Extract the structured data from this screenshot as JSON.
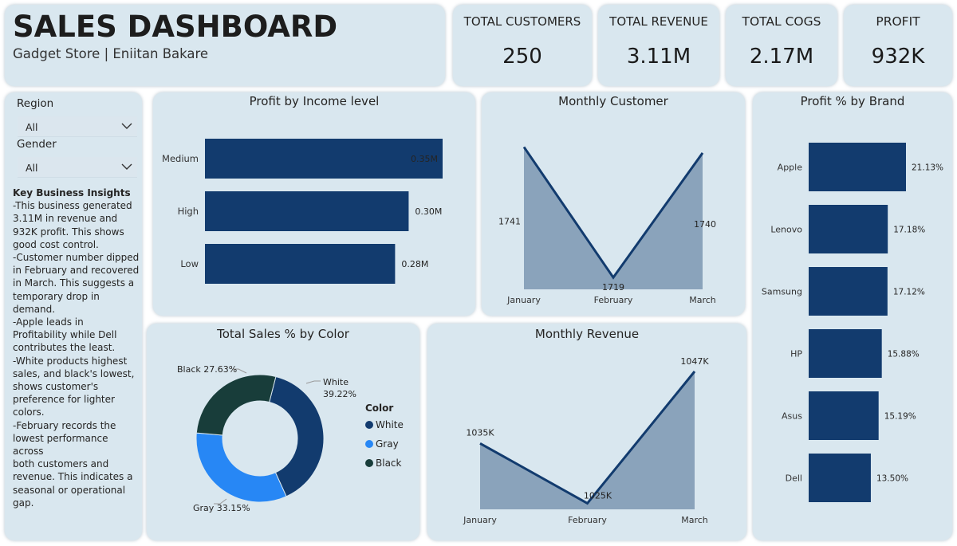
{
  "header": {
    "title": "SALES DASHBOARD",
    "subtitle": "Gadget Store | Eniitan Bakare"
  },
  "kpis": [
    {
      "label": "TOTAL CUSTOMERS",
      "value": "250"
    },
    {
      "label": "TOTAL REVENUE",
      "value": "3.11M"
    },
    {
      "label": "TOTAL COGS",
      "value": "2.17M"
    },
    {
      "label": "PROFIT",
      "value": "932K"
    }
  ],
  "filters": {
    "region_label": "Region",
    "region_value": "All",
    "gender_label": "Gender",
    "gender_value": "All"
  },
  "insights": {
    "title": "Key Business Insights",
    "lines": [
      "-This business generated",
      "3.11M in revenue and",
      "932K profit. This shows",
      "good cost control.",
      "-Customer number dipped",
      "in February and recovered",
      "in March. This suggests a",
      "temporary drop in",
      "demand.",
      "-Apple leads in",
      "Profitability while Dell",
      "contributes the least.",
      "-White products highest",
      "sales, and black's lowest,",
      "shows customer's",
      "preference for lighter",
      "colors.",
      "-February records the",
      "lowest performance across",
      "both customers and",
      "revenue. This indicates a",
      "seasonal or operational",
      "gap."
    ]
  },
  "colors": {
    "bar": "#123b6e",
    "area_fill": "#8aa3bb",
    "line": "#123b6e",
    "card_bg": "#d9e7ef",
    "white_slice": "#123b6e",
    "gray_slice": "#2787f5",
    "black_slice": "#183d3a"
  },
  "chart_data": [
    {
      "id": "profit-by-income",
      "type": "bar",
      "orientation": "horizontal",
      "title": "Profit by Income level",
      "categories": [
        "Medium",
        "High",
        "Low"
      ],
      "values": [
        0.35,
        0.3,
        0.28
      ],
      "data_labels": [
        "0.35M",
        "0.30M",
        "0.28M"
      ],
      "xlim": [
        0,
        0.35
      ]
    },
    {
      "id": "monthly-customer",
      "type": "area",
      "title": "Monthly Customer",
      "categories": [
        "January",
        "February",
        "March"
      ],
      "values": [
        1741,
        1719,
        1740
      ],
      "data_labels": [
        "1741",
        "1719",
        "1740"
      ],
      "ylim": [
        1717,
        1742
      ]
    },
    {
      "id": "profit-pct-by-brand",
      "type": "bar",
      "orientation": "horizontal",
      "title": "Profit % by Brand",
      "categories": [
        "Apple",
        "Lenovo",
        "Samsung",
        "HP",
        "Asus",
        "Dell"
      ],
      "values": [
        21.13,
        17.18,
        17.12,
        15.88,
        15.19,
        13.5
      ],
      "data_labels": [
        "21.13%",
        "17.18%",
        "17.12%",
        "15.88%",
        "15.19%",
        "13.50%"
      ],
      "xlim": [
        0,
        21.13
      ]
    },
    {
      "id": "sales-pct-by-color",
      "type": "pie",
      "donut": true,
      "title": "Total Sales % by Color",
      "legend_title": "Color",
      "legend_position": "right",
      "labels": [
        "White",
        "Gray",
        "Black"
      ],
      "values": [
        39.22,
        33.15,
        27.63
      ],
      "label_text": [
        "White",
        "Gray 33.15%",
        "Black 27.63%"
      ],
      "white_pct": "39.22%"
    },
    {
      "id": "monthly-revenue",
      "type": "area",
      "title": "Monthly Revenue",
      "categories": [
        "January",
        "February",
        "March"
      ],
      "values": [
        1035,
        1025,
        1047
      ],
      "data_labels": [
        "1035K",
        "1025K",
        "1047K"
      ],
      "ylim": [
        1024,
        1047
      ]
    }
  ]
}
